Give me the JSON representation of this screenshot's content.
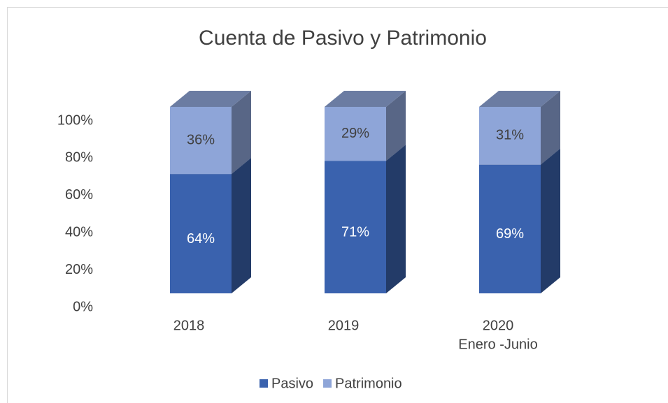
{
  "chart_data": {
    "type": "bar3d_stacked",
    "title": "Cuenta de Pasivo y Patrimonio",
    "categories": [
      [
        "2018"
      ],
      [
        "2019"
      ],
      [
        "2020",
        "Enero -Junio"
      ]
    ],
    "series": [
      {
        "name": "Pasivo",
        "color": "#3a62ae",
        "values": [
          64,
          71,
          69
        ],
        "value_labels": [
          "64%",
          "71%",
          "69%"
        ]
      },
      {
        "name": "Patrimonio",
        "color": "#8ea5d8",
        "values": [
          36,
          29,
          31
        ],
        "value_labels": [
          "36%",
          "29%",
          "31%"
        ]
      }
    ],
    "ylim": [
      0,
      100
    ],
    "yticks": [
      {
        "value": 0,
        "label": "0%"
      },
      {
        "value": 20,
        "label": "20%"
      },
      {
        "value": 40,
        "label": "40%"
      },
      {
        "value": 60,
        "label": "60%"
      },
      {
        "value": 80,
        "label": "80%"
      },
      {
        "value": 100,
        "label": "100%"
      }
    ],
    "grid": false,
    "legend": "bottom"
  }
}
